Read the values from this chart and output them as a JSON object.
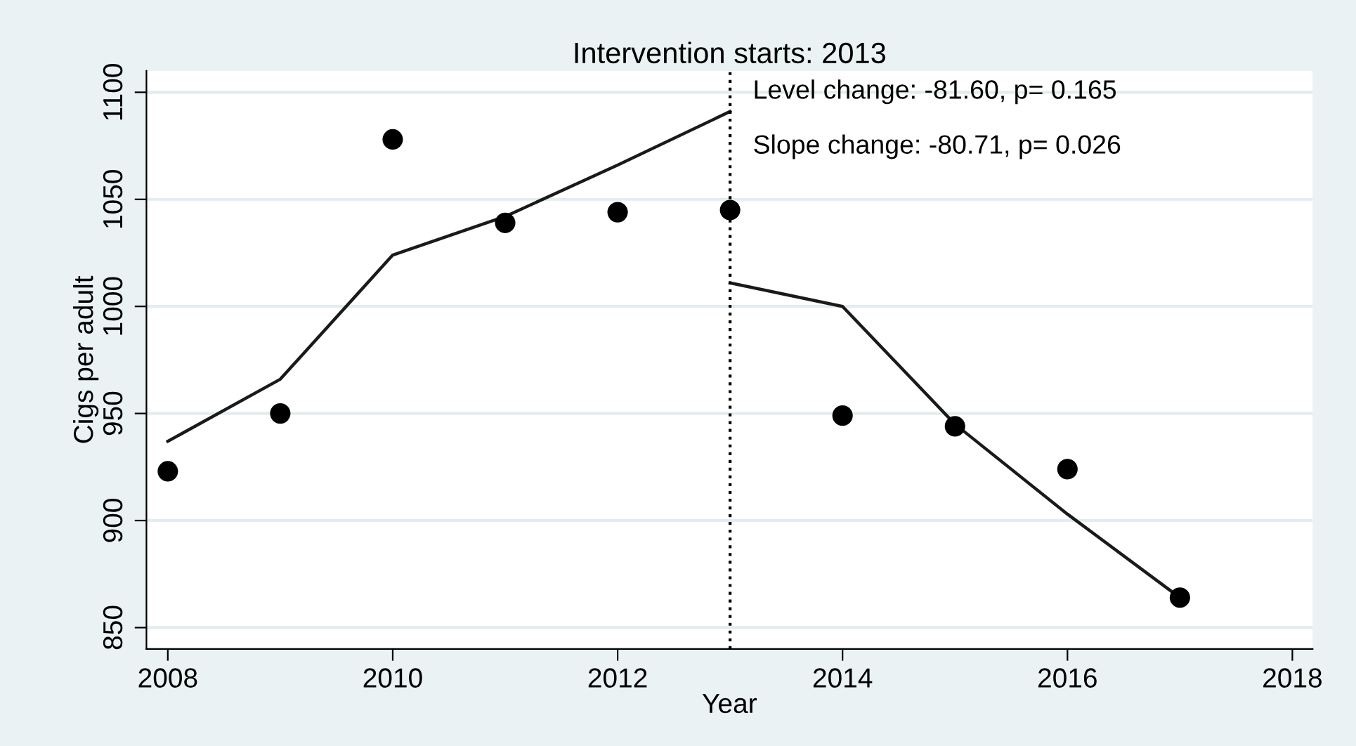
{
  "chart_data": {
    "type": "scatter",
    "title": "Intervention starts: 2013",
    "xlabel": "Year",
    "ylabel": "Cigs per adult",
    "xlim": [
      2007.81,
      2018.18
    ],
    "xticks": [
      2008,
      2010,
      2012,
      2014,
      2016,
      2018
    ],
    "ylim": [
      840,
      1110
    ],
    "yticks": [
      850,
      900,
      950,
      1000,
      1050,
      1100
    ],
    "grid": "y",
    "series": [
      {
        "marker": "circle",
        "color": "#000000",
        "x": [
          2008,
          2009,
          2010,
          2011,
          2012,
          2013,
          2014,
          2015,
          2016,
          2017
        ],
        "values": [
          923,
          950,
          1078,
          1039,
          1044,
          1045,
          949,
          944,
          924,
          864
        ]
      },
      {
        "type": "line",
        "color": "#1a1a1a",
        "line_style": "solid",
        "x": [
          2008,
          2009,
          2010,
          2011,
          2012,
          2013
        ],
        "values": [
          937,
          966,
          1024,
          1042,
          1066,
          1091
        ]
      },
      {
        "type": "line",
        "color": "#1a1a1a",
        "line_style": "solid",
        "x": [
          2013,
          2014,
          2015,
          2016,
          2017
        ],
        "values": [
          1011,
          1000,
          945,
          903,
          864
        ]
      }
    ],
    "ref_lines": [
      {
        "axis": "x",
        "value": 2013,
        "color": "#000000",
        "line_style": "dotted"
      }
    ],
    "annotations": [
      "Level change: -81.60, p= 0.165",
      "Slope change: -80.71, p= 0.026"
    ]
  }
}
